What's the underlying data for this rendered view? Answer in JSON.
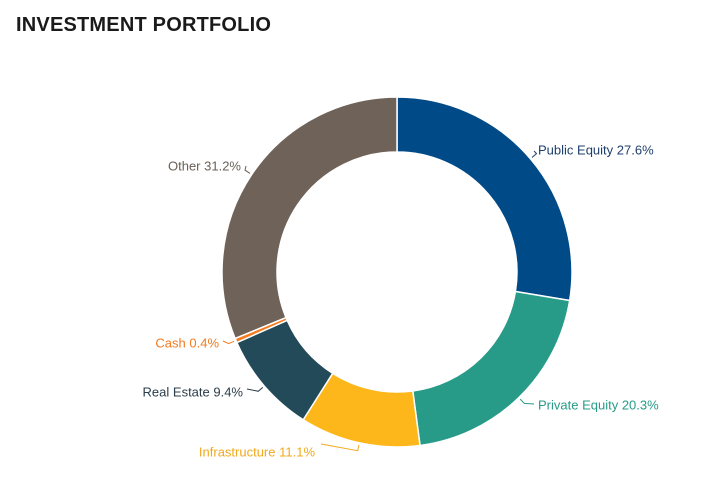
{
  "header": {
    "title": "INVESTMENT PORTFOLIO"
  },
  "chart_data": {
    "type": "pie",
    "title": "INVESTMENT PORTFOLIO",
    "donut": true,
    "unit": "%",
    "slices": [
      {
        "label": "Public Equity",
        "value": 27.6,
        "display": "Public Equity 27.6%",
        "color": "#004a87",
        "label_color": "#1f3f6b"
      },
      {
        "label": "Private Equity",
        "value": 20.3,
        "display": "Private Equity 20.3%",
        "color": "#279b88",
        "label_color": "#279b88"
      },
      {
        "label": "Infrastructure",
        "value": 11.1,
        "display": "Infrastructure 11.1%",
        "color": "#fdb71a",
        "label_color": "#f1a91b"
      },
      {
        "label": "Real Estate",
        "value": 9.4,
        "display": "Real Estate 9.4%",
        "color": "#224a59",
        "label_color": "#2b3d4b"
      },
      {
        "label": "Cash",
        "value": 0.4,
        "display": "Cash 0.4%",
        "color": "#f47b20",
        "label_color": "#f47b20"
      },
      {
        "label": "Other",
        "value": 31.2,
        "display": "Other 31.2%",
        "color": "#6f6258",
        "label_color": "#6a6058"
      }
    ],
    "legend": "none"
  }
}
